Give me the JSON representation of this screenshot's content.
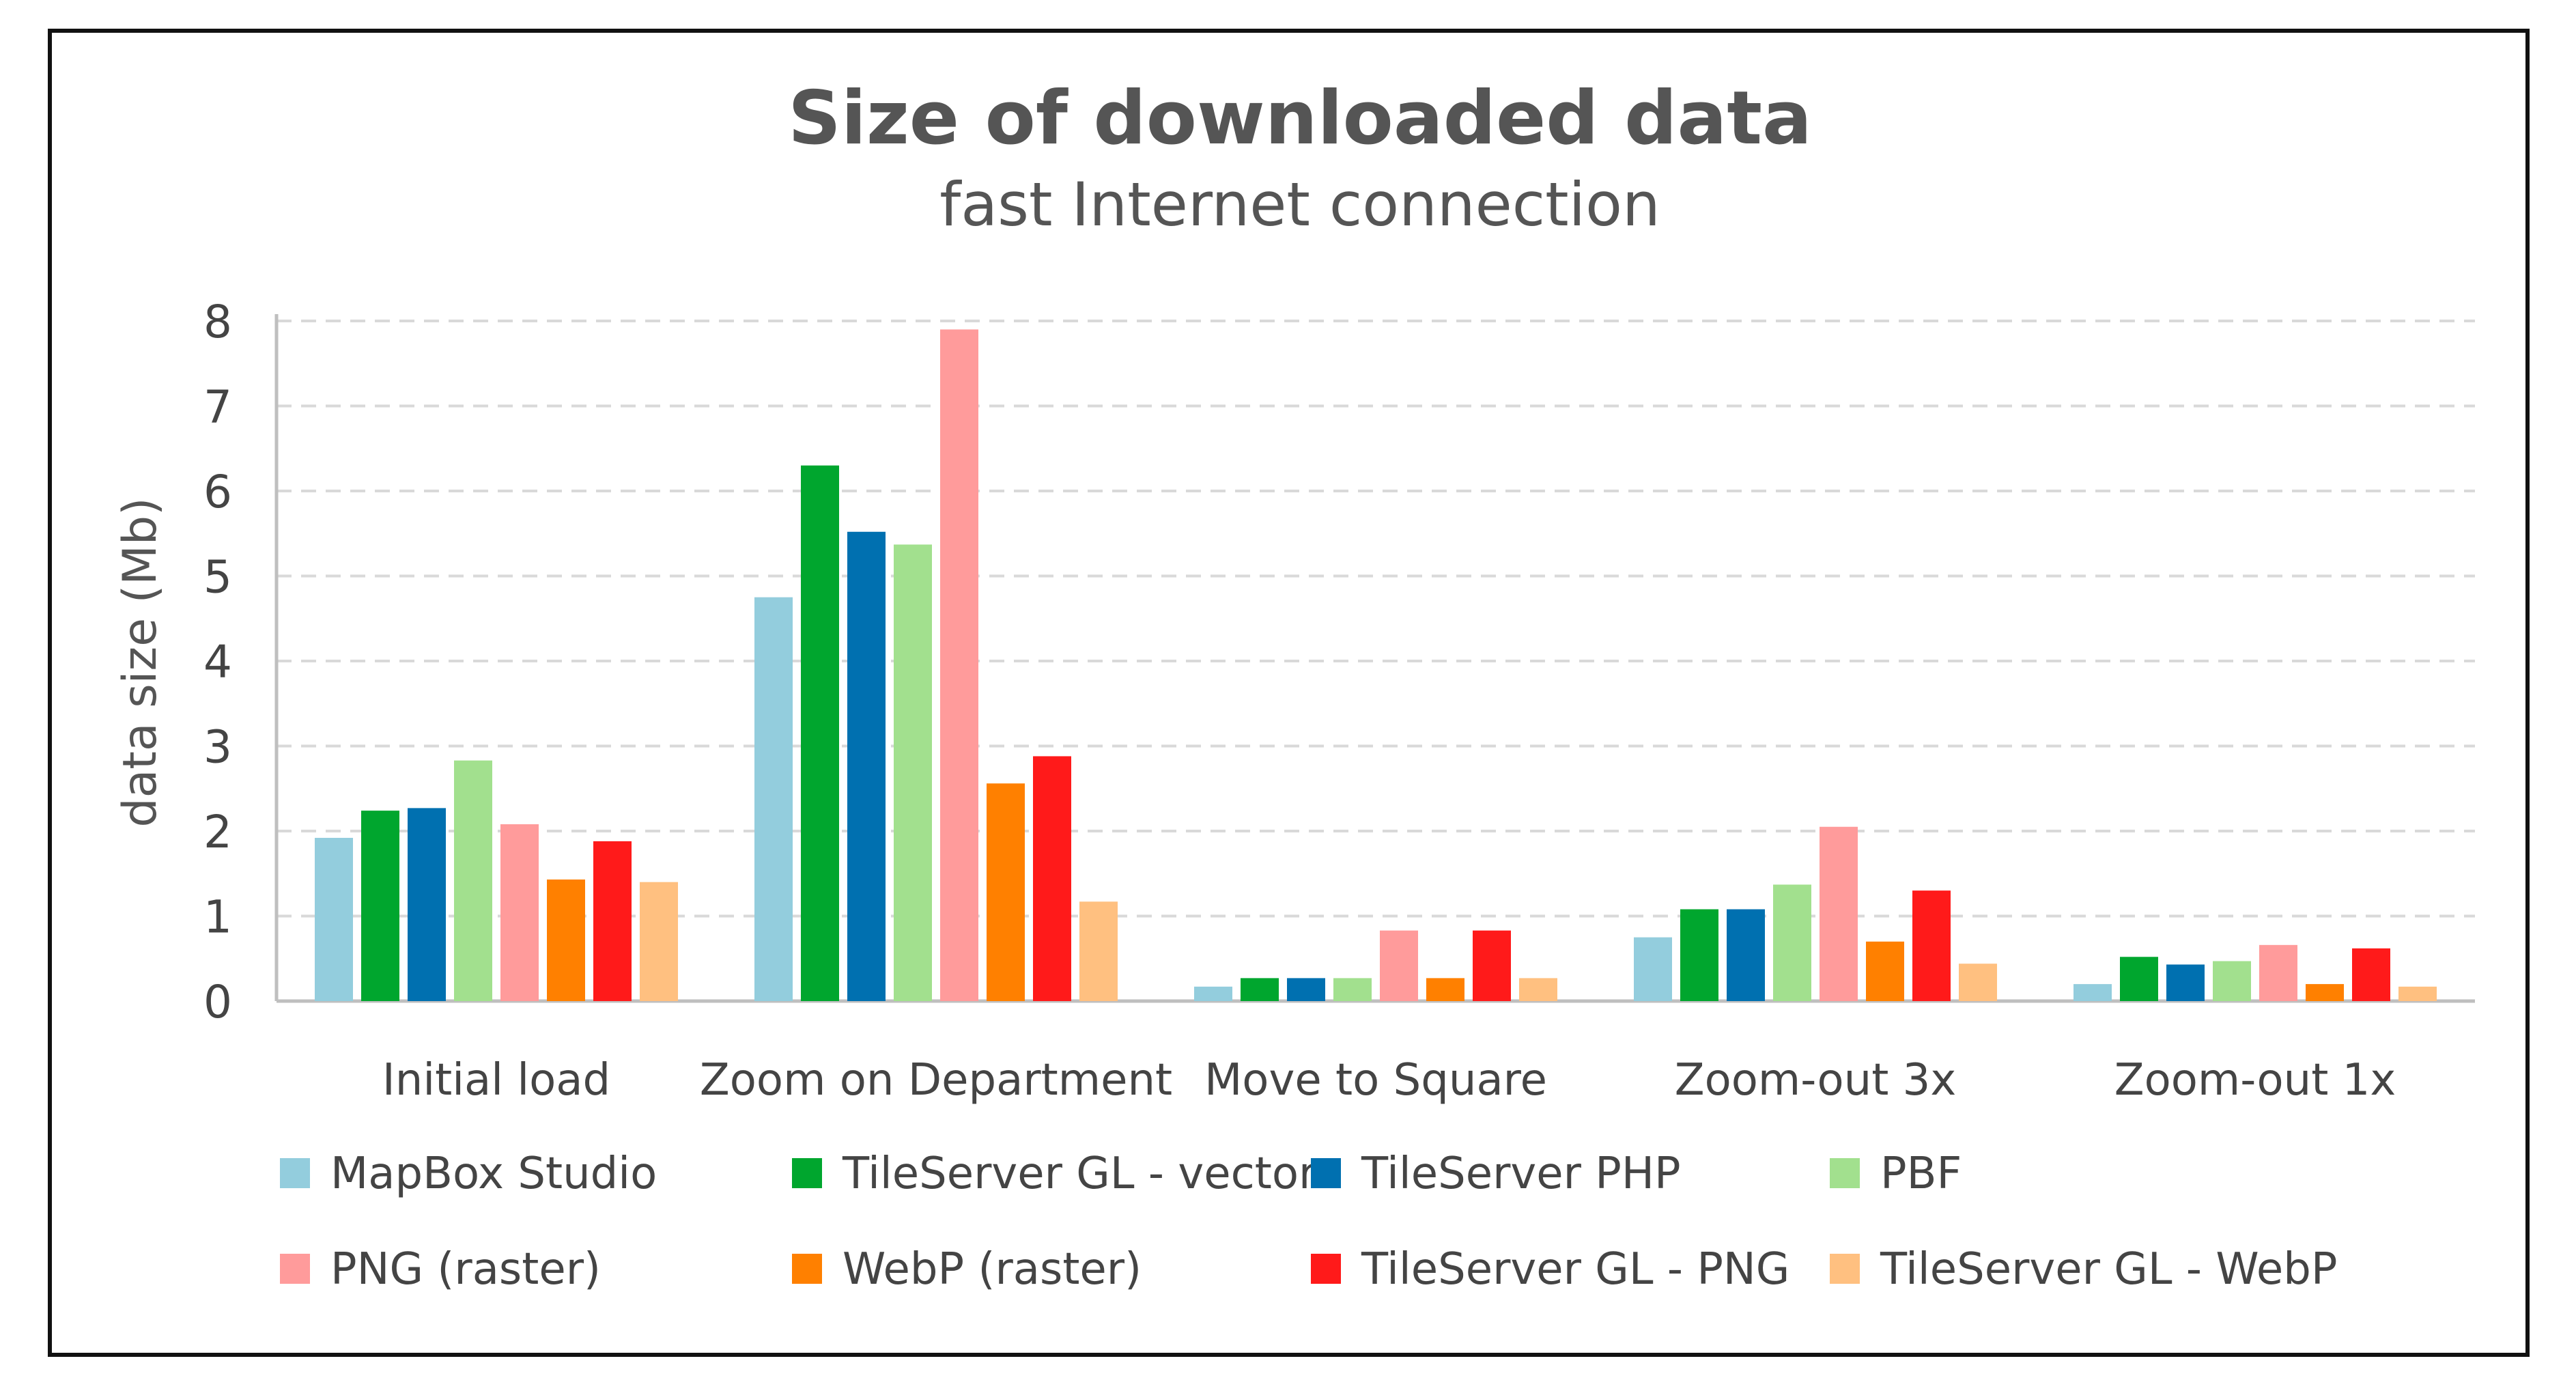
{
  "chart_data": {
    "type": "bar",
    "title": "Size of downloaded data",
    "subtitle": "fast Internet connection",
    "xlabel": "",
    "ylabel": "data size (Mb)",
    "ylim": [
      0,
      8
    ],
    "yticks": [
      "0",
      "1",
      "2",
      "3",
      "4",
      "5",
      "6",
      "7",
      "8"
    ],
    "grid": true,
    "legend_position": "bottom",
    "categories": [
      "Initial load",
      "Zoom on Department",
      "Move to Square",
      "Zoom-out 3x",
      "Zoom-out 1x"
    ],
    "series": [
      {
        "name": "MapBox Studio",
        "color": "#93cddd",
        "values": [
          1.92,
          4.75,
          0.17,
          0.75,
          0.2
        ]
      },
      {
        "name": "TileServer GL - vector",
        "color": "#00a62e",
        "values": [
          2.24,
          6.3,
          0.27,
          1.08,
          0.52
        ]
      },
      {
        "name": "TileServer PHP",
        "color": "#0070b0",
        "values": [
          2.27,
          5.52,
          0.27,
          1.08,
          0.43
        ]
      },
      {
        "name": "PBF",
        "color": "#a2e08e",
        "values": [
          2.83,
          5.37,
          0.27,
          1.37,
          0.47
        ]
      },
      {
        "name": "PNG (raster)",
        "color": "#ff9b9b",
        "values": [
          2.08,
          7.9,
          0.83,
          2.05,
          0.66
        ]
      },
      {
        "name": "WebP (raster)",
        "color": "#ff8000",
        "values": [
          1.43,
          2.56,
          0.27,
          0.7,
          0.2
        ]
      },
      {
        "name": "TileServer GL - PNG",
        "color": "#ff1a1a",
        "values": [
          1.88,
          2.88,
          0.83,
          1.3,
          0.62
        ]
      },
      {
        "name": "TileServer GL - WebP",
        "color": "#ffc080",
        "values": [
          1.4,
          1.17,
          0.27,
          0.44,
          0.17
        ]
      }
    ]
  }
}
